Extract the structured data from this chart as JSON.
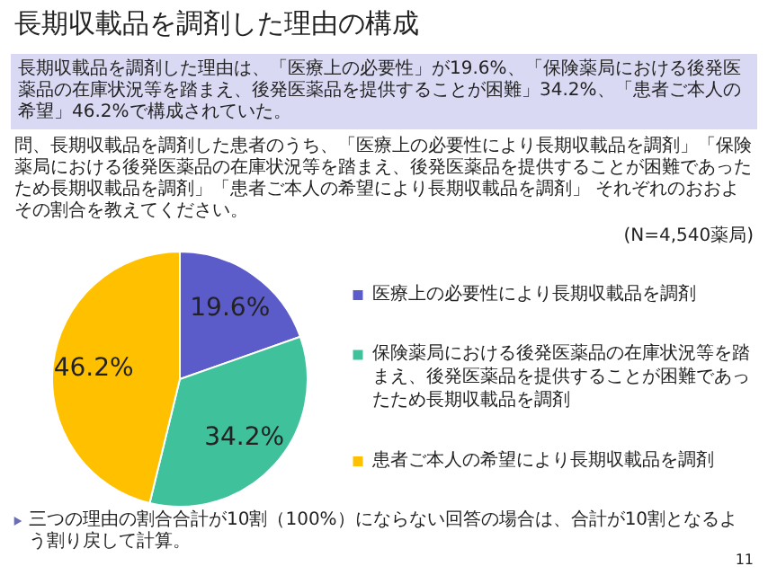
{
  "chart_data": {
    "type": "pie",
    "title": "長期収載品を調剤した理由の構成",
    "subtitle": "長期収載品を調剤した理由は、「医療上の必要性」が19.6%、「保険薬局における後発医薬品の在庫状況等を踏まえ、後発医薬品を提供することが困難」34.2%、「患者ご本人の希望」46.2%で構成されていた。",
    "categories": [
      "医療上の必要性により長期収載品を調剤",
      "保険薬局における後発医薬品の在庫状況等を踏まえ、後発医薬品を提供することが困難であったため長期収載品を調剤",
      "患者ご本人の希望により長期収載品を調剤"
    ],
    "values": [
      19.6,
      34.2,
      46.2
    ],
    "value_labels": [
      "19.6%",
      "34.2%",
      "46.2%"
    ],
    "colors": [
      "#5b5bc9",
      "#3fc29c",
      "#ffc000"
    ],
    "legend": "right",
    "annotations": [
      "問、長期収載品を調剤した患者のうち、「医療上の必要性により長期収載品を調剤」「保険薬局における後発医薬品の在庫状況等を踏まえ、後発医薬品を提供することが困難であったため長期収載品を調剤」「患者ご本人の希望により長期収載品を調剤」 それぞれのおおよその割合を教えてください。",
      "(N=4,540薬局)",
      "三つの理由の割合合計が10割（100%）にならない回答の場合は、合計が10割となるよう割り戻して計算。",
      "11"
    ]
  }
}
